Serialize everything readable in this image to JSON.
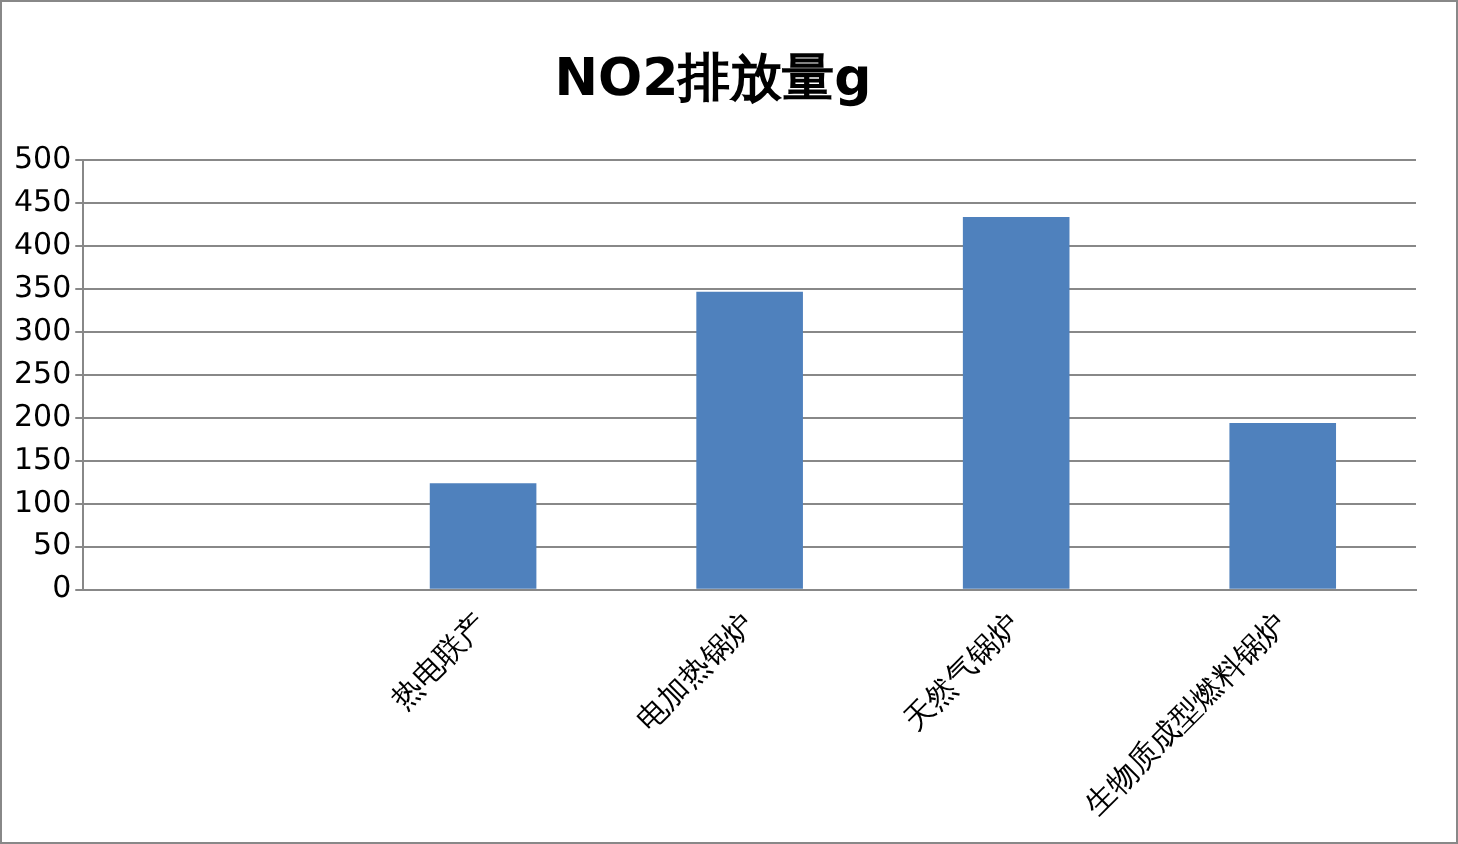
{
  "chart_data": {
    "type": "bar",
    "title": "NO2排放量g",
    "categories": [
      null,
      "热电联产",
      "电加热锅炉",
      "天然气锅炉",
      "生物质成型燃料锅炉"
    ],
    "values": [
      null,
      124,
      347,
      434,
      194
    ],
    "color": "#4f81bd",
    "ylim": [
      0,
      500
    ],
    "yticks": [
      0,
      50,
      100,
      150,
      200,
      250,
      300,
      350,
      400,
      450,
      500
    ],
    "grid": "y"
  }
}
